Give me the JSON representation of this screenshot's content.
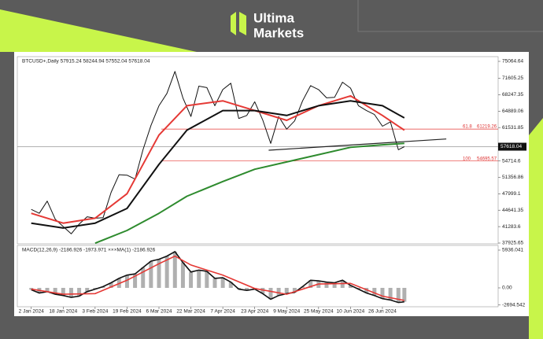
{
  "logo": {
    "line1": "Ultima",
    "line2": "Markets"
  },
  "chart_data": [
    {
      "type": "line",
      "title": "BTCUSD+,Daily  57915.24 58244.94 57552.04 57618.04",
      "xlim": [
        "2023-12-26",
        "2024-08-23"
      ],
      "ylim": [
        37765,
        76030
      ],
      "yticks": [
        75064.64,
        71605.25,
        68247.35,
        64889.06,
        61531.85,
        54714.6,
        51356.86,
        47999.1,
        44641.35,
        41283.6,
        37925.65
      ],
      "current_price": 57618.04,
      "levels": [
        {
          "ratio": "61.8",
          "value": 61219.26,
          "color": "#e53935"
        },
        {
          "ratio": "100",
          "value": 54695.57,
          "color": "#e53935"
        }
      ],
      "trendline": {
        "x": [
          "2024-04-30",
          "2024-07-28"
        ],
        "values": [
          56900,
          59200
        ],
        "color": "#222222"
      },
      "series": [
        {
          "color": "#111111",
          "width": 1,
          "x": [
            "2024-01-02",
            "2024-01-06",
            "2024-01-10",
            "2024-01-14",
            "2024-01-18",
            "2024-01-22",
            "2024-01-26",
            "2024-01-30",
            "2024-02-03",
            "2024-02-07",
            "2024-02-11",
            "2024-02-15",
            "2024-02-19",
            "2024-02-23",
            "2024-02-27",
            "2024-03-02",
            "2024-03-06",
            "2024-03-10",
            "2024-03-14",
            "2024-03-18",
            "2024-03-22",
            "2024-03-26",
            "2024-03-30",
            "2024-04-03",
            "2024-04-07",
            "2024-04-11",
            "2024-04-15",
            "2024-04-19",
            "2024-04-23",
            "2024-04-27",
            "2024-05-01",
            "2024-05-05",
            "2024-05-09",
            "2024-05-13",
            "2024-05-17",
            "2024-05-21",
            "2024-05-25",
            "2024-05-29",
            "2024-06-02",
            "2024-06-06",
            "2024-06-10",
            "2024-06-14",
            "2024-06-18",
            "2024-06-22",
            "2024-06-26",
            "2024-06-30",
            "2024-07-04",
            "2024-07-07"
          ],
          "values": [
            44800,
            44000,
            46500,
            42800,
            41300,
            39800,
            41800,
            43300,
            43000,
            43100,
            48300,
            51900,
            51800,
            51000,
            57000,
            62000,
            66000,
            68500,
            73000,
            67600,
            63800,
            70000,
            69700,
            66000,
            69300,
            70600,
            63400,
            64000,
            66800,
            63100,
            58300,
            63800,
            61200,
            62900,
            67000,
            70100,
            69300,
            67600,
            67700,
            70800,
            69600,
            66000,
            65000,
            64200,
            61800,
            62700,
            57000,
            57618.04
          ]
        },
        {
          "color": "#e53935",
          "width": 2,
          "x": [
            "2024-01-02",
            "2024-01-18",
            "2024-02-03",
            "2024-02-19",
            "2024-03-06",
            "2024-03-20",
            "2024-04-07",
            "2024-04-23",
            "2024-05-09",
            "2024-05-25",
            "2024-06-10",
            "2024-06-26",
            "2024-07-07"
          ],
          "values": [
            44000,
            42000,
            43000,
            48000,
            60000,
            66000,
            67000,
            65000,
            63000,
            66000,
            68000,
            64000,
            61000
          ]
        },
        {
          "color": "#111111",
          "width": 2,
          "x": [
            "2024-01-02",
            "2024-01-18",
            "2024-02-03",
            "2024-02-19",
            "2024-03-06",
            "2024-03-20",
            "2024-04-07",
            "2024-04-23",
            "2024-05-09",
            "2024-05-25",
            "2024-06-10",
            "2024-06-26",
            "2024-07-07"
          ],
          "values": [
            42000,
            41000,
            42000,
            45000,
            54000,
            61000,
            65000,
            65000,
            64000,
            66000,
            67000,
            66000,
            63500
          ]
        },
        {
          "color": "#2e8b2e",
          "width": 2,
          "x": [
            "2024-02-03",
            "2024-02-19",
            "2024-03-06",
            "2024-03-20",
            "2024-04-07",
            "2024-04-23",
            "2024-05-09",
            "2024-05-25",
            "2024-06-10",
            "2024-06-26",
            "2024-07-07"
          ],
          "values": [
            37900,
            40500,
            44000,
            47500,
            50500,
            53000,
            54500,
            56000,
            57500,
            58000,
            58300
          ]
        }
      ]
    },
    {
      "type": "bar",
      "title": "MACD(12,26,9) -2186.926 -1973.971 ×××MA(1) -2186.926",
      "xlim": [
        "2023-12-26",
        "2024-08-23"
      ],
      "xticks": [
        {
          "value": "2024-01-02",
          "label": "2 Jan 2024"
        },
        {
          "value": "2024-01-18",
          "label": "18 Jan 2024"
        },
        {
          "value": "2024-02-03",
          "label": "3 Feb 2024"
        },
        {
          "value": "2024-02-19",
          "label": "19 Feb 2024"
        },
        {
          "value": "2024-03-06",
          "label": "6 Mar 2024"
        },
        {
          "value": "2024-03-22",
          "label": "22 Mar 2024"
        },
        {
          "value": "2024-04-07",
          "label": "7 Apr 2024"
        },
        {
          "value": "2024-04-23",
          "label": "23 Apr 2024"
        },
        {
          "value": "2024-05-09",
          "label": "9 May 2024"
        },
        {
          "value": "2024-05-25",
          "label": "25 May 2024"
        },
        {
          "value": "2024-06-10",
          "label": "10 Jun 2024"
        },
        {
          "value": "2024-06-26",
          "label": "26 Jun 2024"
        }
      ],
      "ylim": [
        -2969,
        6678
      ],
      "yticks": [
        5936.041,
        {
          "value": 0,
          "label": "0.00"
        },
        -2694.542
      ],
      "series": [
        {
          "color": "#b0b0b0",
          "kind": "bar",
          "x": [
            "2024-01-02",
            "2024-01-06",
            "2024-01-10",
            "2024-01-14",
            "2024-01-18",
            "2024-01-22",
            "2024-01-26",
            "2024-01-30",
            "2024-02-03",
            "2024-02-07",
            "2024-02-11",
            "2024-02-15",
            "2024-02-19",
            "2024-02-23",
            "2024-02-27",
            "2024-03-02",
            "2024-03-06",
            "2024-03-10",
            "2024-03-14",
            "2024-03-18",
            "2024-03-22",
            "2024-03-26",
            "2024-03-30",
            "2024-04-03",
            "2024-04-07",
            "2024-04-11",
            "2024-04-15",
            "2024-04-19",
            "2024-04-23",
            "2024-04-27",
            "2024-05-01",
            "2024-05-05",
            "2024-05-09",
            "2024-05-13",
            "2024-05-17",
            "2024-05-21",
            "2024-05-25",
            "2024-05-29",
            "2024-06-02",
            "2024-06-06",
            "2024-06-10",
            "2024-06-14",
            "2024-06-18",
            "2024-06-22",
            "2024-06-26",
            "2024-06-30",
            "2024-07-04",
            "2024-07-07"
          ],
          "values": [
            -300,
            -800,
            -600,
            -1000,
            -1200,
            -1500,
            -1300,
            -600,
            -200,
            200,
            800,
            1500,
            2000,
            2200,
            3200,
            4200,
            4500,
            5000,
            5700,
            4000,
            2500,
            2800,
            2600,
            1500,
            1600,
            900,
            -200,
            -400,
            -200,
            -900,
            -1800,
            -1200,
            -900,
            -700,
            200,
            1200,
            1100,
            900,
            800,
            1200,
            400,
            -200,
            -800,
            -1200,
            -1700,
            -1900,
            -2300,
            -2186.926
          ]
        },
        {
          "color": "#111111",
          "kind": "line",
          "x": [
            "2024-01-02",
            "2024-01-06",
            "2024-01-10",
            "2024-01-14",
            "2024-01-18",
            "2024-01-22",
            "2024-01-26",
            "2024-01-30",
            "2024-02-03",
            "2024-02-07",
            "2024-02-11",
            "2024-02-15",
            "2024-02-19",
            "2024-02-23",
            "2024-02-27",
            "2024-03-02",
            "2024-03-06",
            "2024-03-10",
            "2024-03-14",
            "2024-03-18",
            "2024-03-22",
            "2024-03-26",
            "2024-03-30",
            "2024-04-03",
            "2024-04-07",
            "2024-04-11",
            "2024-04-15",
            "2024-04-19",
            "2024-04-23",
            "2024-04-27",
            "2024-05-01",
            "2024-05-05",
            "2024-05-09",
            "2024-05-13",
            "2024-05-17",
            "2024-05-21",
            "2024-05-25",
            "2024-05-29",
            "2024-06-02",
            "2024-06-06",
            "2024-06-10",
            "2024-06-14",
            "2024-06-18",
            "2024-06-22",
            "2024-06-26",
            "2024-06-30",
            "2024-07-04",
            "2024-07-07"
          ],
          "values": [
            -300,
            -800,
            -600,
            -1000,
            -1200,
            -1500,
            -1300,
            -600,
            -200,
            200,
            800,
            1500,
            2000,
            2200,
            3200,
            4200,
            4500,
            5000,
            5700,
            4000,
            2500,
            2800,
            2600,
            1500,
            1600,
            900,
            -200,
            -400,
            -200,
            -900,
            -1800,
            -1200,
            -900,
            -700,
            200,
            1200,
            1100,
            900,
            800,
            1200,
            400,
            -200,
            -800,
            -1200,
            -1700,
            -1900,
            -2300,
            -2186.926
          ]
        },
        {
          "color": "#e53935",
          "kind": "line",
          "x": [
            "2024-01-02",
            "2024-01-18",
            "2024-02-03",
            "2024-02-19",
            "2024-03-06",
            "2024-03-14",
            "2024-03-22",
            "2024-04-07",
            "2024-04-23",
            "2024-05-09",
            "2024-05-25",
            "2024-06-10",
            "2024-06-26",
            "2024-07-07"
          ],
          "values": [
            -200,
            -1000,
            -900,
            1200,
            3800,
            5000,
            3600,
            2000,
            -100,
            -1000,
            600,
            700,
            -1300,
            -1973.971
          ]
        }
      ]
    }
  ]
}
